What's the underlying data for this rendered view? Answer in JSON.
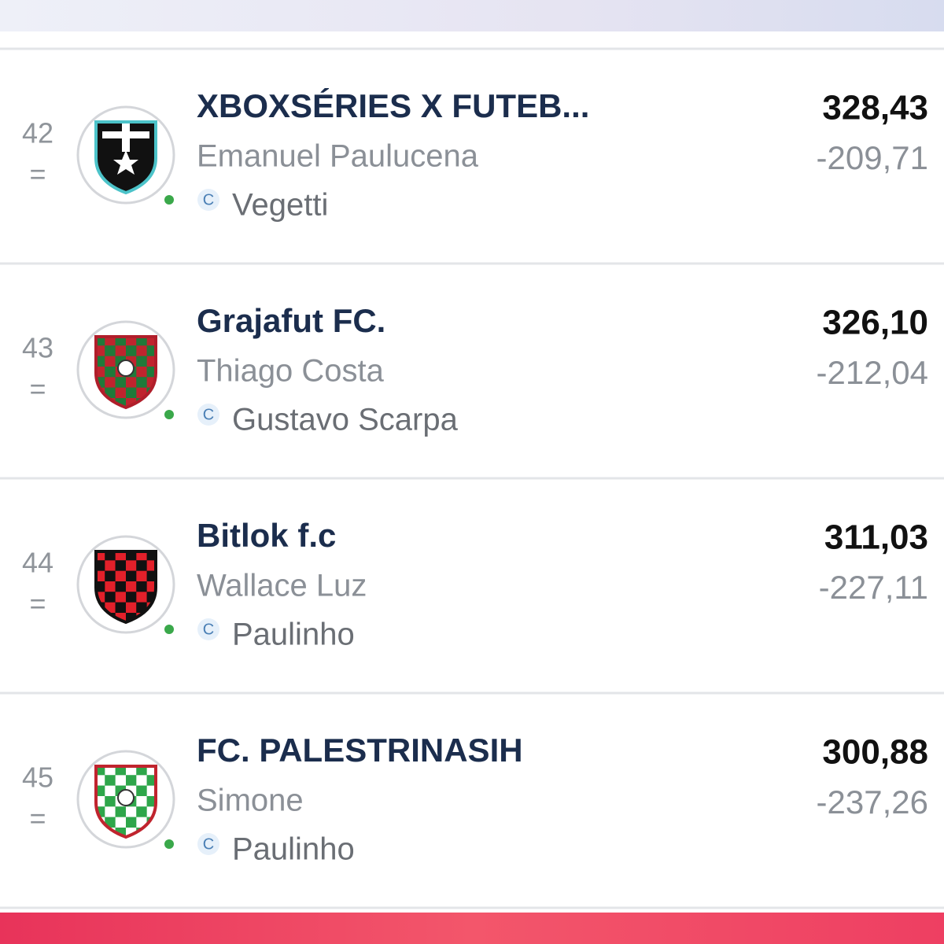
{
  "rows": [
    {
      "rank": "42",
      "change": "=",
      "team": "XBOXSÉRIES X FUTEB...",
      "owner": "Emanuel Paulucena",
      "captain_badge": "C",
      "captain": "Vegetti",
      "points": "328,43",
      "difference": "-209,71"
    },
    {
      "rank": "43",
      "change": "=",
      "team": "Grajafut FC.",
      "owner": "Thiago Costa",
      "captain_badge": "C",
      "captain": "Gustavo Scarpa",
      "points": "326,10",
      "difference": "-212,04"
    },
    {
      "rank": "44",
      "change": "=",
      "team": "Bitlok f.c",
      "owner": "Wallace Luz",
      "captain_badge": "C",
      "captain": "Paulinho",
      "points": "311,03",
      "difference": "-227,11"
    },
    {
      "rank": "45",
      "change": "=",
      "team": "FC. PALESTRINASIH",
      "owner": "Simone",
      "captain_badge": "C",
      "captain": "Paulinho",
      "points": "300,88",
      "difference": "-237,26"
    }
  ]
}
